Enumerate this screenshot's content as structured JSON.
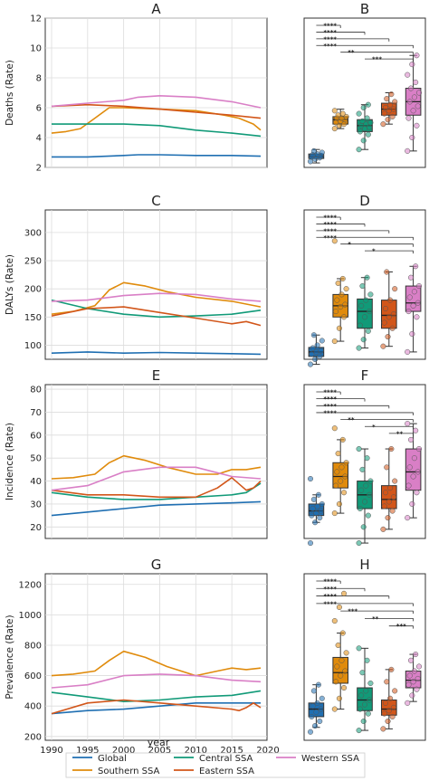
{
  "figure": {
    "xlabel": "year",
    "legend": [
      {
        "name": "Global",
        "color": "#1f6fb2"
      },
      {
        "name": "Southern SSA",
        "color": "#e08b0c"
      },
      {
        "name": "Central SSA",
        "color": "#119a78"
      },
      {
        "name": "Eastern SSA",
        "color": "#d2561a"
      },
      {
        "name": "Western SSA",
        "color": "#d97fc6"
      }
    ]
  },
  "chart_data": [
    {
      "panel": "A",
      "type": "line",
      "ylabel": "Deaths (Rate)",
      "xlim": [
        1990,
        2019
      ],
      "ylim": [
        2,
        12
      ],
      "yticks": [
        2,
        4,
        6,
        8,
        10,
        12
      ],
      "series": [
        {
          "name": "Global",
          "x": [
            1990,
            1995,
            2000,
            2002,
            2005,
            2010,
            2015,
            2019
          ],
          "y": [
            2.7,
            2.7,
            2.8,
            2.85,
            2.85,
            2.8,
            2.8,
            2.75
          ]
        },
        {
          "name": "Southern SSA",
          "x": [
            1990,
            1992,
            1994,
            1996,
            1998,
            2000,
            2005,
            2010,
            2014,
            2016,
            2018,
            2019
          ],
          "y": [
            4.3,
            4.4,
            4.6,
            5.3,
            6.0,
            6.0,
            5.9,
            5.8,
            5.5,
            5.3,
            4.9,
            4.5
          ]
        },
        {
          "name": "Central SSA",
          "x": [
            1990,
            1995,
            2000,
            2005,
            2010,
            2015,
            2019
          ],
          "y": [
            4.9,
            4.9,
            4.9,
            4.8,
            4.5,
            4.3,
            4.1
          ]
        },
        {
          "name": "Eastern SSA",
          "x": [
            1990,
            1995,
            2000,
            2005,
            2010,
            2015,
            2019
          ],
          "y": [
            6.1,
            6.2,
            6.1,
            5.9,
            5.7,
            5.5,
            5.3
          ]
        },
        {
          "name": "Western SSA",
          "x": [
            1990,
            1995,
            2000,
            2002,
            2005,
            2010,
            2015,
            2019
          ],
          "y": [
            6.1,
            6.3,
            6.5,
            6.7,
            6.8,
            6.7,
            6.4,
            6.0
          ]
        }
      ]
    },
    {
      "panel": "B",
      "type": "box",
      "ylim": [
        2,
        12
      ],
      "significance": [
        "****",
        "****",
        "****",
        "****",
        "**",
        "***"
      ],
      "boxes": [
        {
          "name": "Global",
          "whisker_low": 2.3,
          "q1": 2.6,
          "median": 2.75,
          "q3": 2.9,
          "whisker_high": 3.2,
          "points": [
            2.4,
            2.55,
            2.65,
            2.7,
            2.75,
            2.8,
            2.85,
            2.9,
            3.0,
            3.1
          ]
        },
        {
          "name": "Southern SSA",
          "whisker_low": 4.6,
          "q1": 4.9,
          "median": 5.2,
          "q3": 5.4,
          "whisker_high": 5.9,
          "points": [
            4.6,
            4.8,
            4.9,
            5.0,
            5.1,
            5.2,
            5.3,
            5.3,
            5.4,
            5.5,
            5.6,
            5.8
          ]
        },
        {
          "name": "Central SSA",
          "whisker_low": 3.2,
          "q1": 4.4,
          "median": 4.8,
          "q3": 5.2,
          "whisker_high": 6.2,
          "points": [
            3.2,
            3.8,
            4.2,
            4.4,
            4.6,
            4.7,
            4.8,
            4.9,
            5.0,
            5.1,
            5.3,
            5.6,
            6.0,
            6.2
          ]
        },
        {
          "name": "Eastern SSA",
          "whisker_low": 4.9,
          "q1": 5.5,
          "median": 5.9,
          "q3": 6.3,
          "whisker_high": 7.0,
          "points": [
            4.9,
            5.2,
            5.4,
            5.6,
            5.8,
            5.9,
            6.0,
            6.2,
            6.4,
            6.6,
            6.9
          ]
        },
        {
          "name": "Western SSA",
          "whisker_low": 3.1,
          "q1": 5.5,
          "median": 6.4,
          "q3": 7.3,
          "whisker_high": 9.5,
          "points": [
            3.1,
            4.0,
            4.8,
            5.3,
            5.8,
            6.1,
            6.4,
            6.7,
            7.0,
            7.3,
            7.7,
            8.2,
            8.9,
            9.5
          ]
        }
      ]
    },
    {
      "panel": "C",
      "type": "line",
      "ylabel": "DALYs (Rate)",
      "xlim": [
        1990,
        2019
      ],
      "ylim": [
        75,
        340
      ],
      "yticks": [
        100,
        150,
        200,
        250,
        300
      ],
      "series": [
        {
          "name": "Global",
          "x": [
            1990,
            1995,
            2000,
            2005,
            2010,
            2015,
            2019
          ],
          "y": [
            86,
            88,
            86,
            87,
            86,
            85,
            84
          ]
        },
        {
          "name": "Southern SSA",
          "x": [
            1990,
            1993,
            1996,
            1998,
            2000,
            2003,
            2006,
            2010,
            2015,
            2019
          ],
          "y": [
            155,
            160,
            170,
            198,
            211,
            205,
            195,
            185,
            178,
            168
          ]
        },
        {
          "name": "Central SSA",
          "x": [
            1990,
            1995,
            2000,
            2005,
            2010,
            2015,
            2019
          ],
          "y": [
            180,
            165,
            155,
            150,
            152,
            155,
            162
          ]
        },
        {
          "name": "Eastern SSA",
          "x": [
            1990,
            1995,
            2000,
            2005,
            2010,
            2015,
            2017,
            2019
          ],
          "y": [
            152,
            165,
            168,
            158,
            148,
            138,
            142,
            135
          ]
        },
        {
          "name": "Western SSA",
          "x": [
            1990,
            1995,
            2000,
            2005,
            2010,
            2015,
            2019
          ],
          "y": [
            178,
            180,
            188,
            192,
            190,
            182,
            178
          ]
        }
      ]
    },
    {
      "panel": "D",
      "type": "box",
      "ylim": [
        75,
        340
      ],
      "significance": [
        "****",
        "****",
        "****",
        "****",
        "*",
        "*"
      ],
      "boxes": [
        {
          "name": "Global",
          "whisker_low": 66,
          "q1": 80,
          "median": 88,
          "q3": 96,
          "whisker_high": 118,
          "points": [
            66,
            75,
            80,
            84,
            88,
            90,
            95,
            100,
            108,
            118
          ]
        },
        {
          "name": "Southern SSA",
          "whisker_low": 107,
          "q1": 150,
          "median": 170,
          "q3": 190,
          "whisker_high": 218,
          "points": [
            107,
            130,
            150,
            160,
            168,
            172,
            180,
            190,
            200,
            210,
            218,
            285
          ]
        },
        {
          "name": "Central SSA",
          "whisker_low": 95,
          "q1": 130,
          "median": 160,
          "q3": 182,
          "whisker_high": 220,
          "points": [
            95,
            110,
            125,
            135,
            150,
            160,
            170,
            180,
            190,
            205,
            220
          ]
        },
        {
          "name": "Eastern SSA",
          "whisker_low": 98,
          "q1": 130,
          "median": 153,
          "q3": 180,
          "whisker_high": 230,
          "points": [
            98,
            115,
            130,
            140,
            150,
            155,
            165,
            180,
            200,
            230
          ]
        },
        {
          "name": "Western SSA",
          "whisker_low": 88,
          "q1": 160,
          "median": 175,
          "q3": 205,
          "whisker_high": 240,
          "points": [
            88,
            120,
            150,
            160,
            170,
            175,
            185,
            195,
            205,
            220,
            240
          ]
        }
      ]
    },
    {
      "panel": "E",
      "type": "line",
      "ylabel": "Incidence (Rate)",
      "xlim": [
        1990,
        2019
      ],
      "ylim": [
        15,
        82
      ],
      "yticks": [
        20,
        30,
        40,
        50,
        60,
        70,
        80
      ],
      "series": [
        {
          "name": "Global",
          "x": [
            1990,
            1995,
            2000,
            2005,
            2010,
            2015,
            2019
          ],
          "y": [
            25,
            26.5,
            28,
            29.5,
            30,
            30.5,
            31
          ]
        },
        {
          "name": "Southern SSA",
          "x": [
            1990,
            1993,
            1996,
            1998,
            2000,
            2003,
            2006,
            2010,
            2013,
            2015,
            2017,
            2019
          ],
          "y": [
            41,
            41.5,
            43,
            48,
            51,
            49,
            46,
            43,
            43,
            45,
            45,
            46
          ]
        },
        {
          "name": "Central SSA",
          "x": [
            1990,
            1995,
            2000,
            2005,
            2010,
            2015,
            2017,
            2019
          ],
          "y": [
            35,
            33,
            32,
            32,
            33,
            34,
            35,
            39
          ]
        },
        {
          "name": "Eastern SSA",
          "x": [
            1990,
            1995,
            2000,
            2005,
            2010,
            2013,
            2015,
            2017,
            2018,
            2019
          ],
          "y": [
            36,
            34,
            34,
            33,
            33,
            37,
            41.5,
            36,
            37,
            40
          ]
        },
        {
          "name": "Western SSA",
          "x": [
            1990,
            1995,
            2000,
            2005,
            2010,
            2015,
            2019
          ],
          "y": [
            36,
            38,
            44,
            46,
            46,
            42,
            41
          ]
        }
      ]
    },
    {
      "panel": "F",
      "type": "box",
      "ylim": [
        15,
        82
      ],
      "significance": [
        "****",
        "****",
        "****",
        "****",
        "**",
        "*",
        "**"
      ],
      "boxes": [
        {
          "name": "Global",
          "whisker_low": 22,
          "q1": 25,
          "median": 27,
          "q3": 30,
          "whisker_high": 34,
          "points": [
            13,
            22,
            24,
            25,
            26,
            27,
            28,
            29,
            30,
            32,
            34,
            41
          ]
        },
        {
          "name": "Southern SSA",
          "whisker_low": 26,
          "q1": 37,
          "median": 42,
          "q3": 48,
          "whisker_high": 58,
          "points": [
            26,
            30,
            35,
            38,
            40,
            42,
            44,
            46,
            48,
            52,
            58,
            63
          ]
        },
        {
          "name": "Central SSA",
          "whisker_low": 13,
          "q1": 28,
          "median": 34,
          "q3": 40,
          "whisker_high": 54,
          "points": [
            13,
            20,
            25,
            28,
            31,
            34,
            36,
            38,
            40,
            45,
            50,
            54
          ]
        },
        {
          "name": "Eastern SSA",
          "whisker_low": 19,
          "q1": 28,
          "median": 32,
          "q3": 38,
          "whisker_high": 54,
          "points": [
            19,
            24,
            27,
            29,
            31,
            33,
            35,
            37,
            40,
            46,
            54
          ]
        },
        {
          "name": "Western SSA",
          "whisker_low": 24,
          "q1": 36,
          "median": 44,
          "q3": 54,
          "whisker_high": 65,
          "points": [
            24,
            30,
            35,
            38,
            42,
            44,
            46,
            50,
            54,
            58,
            62,
            65
          ]
        }
      ]
    },
    {
      "panel": "G",
      "type": "line",
      "ylabel": "Prevalence (Rate)",
      "xlim": [
        1990,
        2019
      ],
      "ylim": [
        175,
        1270
      ],
      "yticks": [
        200,
        400,
        600,
        800,
        1000,
        1200
      ],
      "series": [
        {
          "name": "Global",
          "x": [
            1990,
            1995,
            2000,
            2005,
            2010,
            2015,
            2019
          ],
          "y": [
            350,
            370,
            380,
            400,
            420,
            420,
            420
          ]
        },
        {
          "name": "Southern SSA",
          "x": [
            1990,
            1993,
            1996,
            1998,
            2000,
            2003,
            2006,
            2010,
            2013,
            2015,
            2017,
            2019
          ],
          "y": [
            600,
            610,
            630,
            700,
            760,
            720,
            660,
            600,
            630,
            650,
            640,
            650
          ]
        },
        {
          "name": "Central SSA",
          "x": [
            1990,
            1995,
            2000,
            2005,
            2010,
            2015,
            2019
          ],
          "y": [
            490,
            460,
            430,
            440,
            460,
            470,
            500
          ]
        },
        {
          "name": "Eastern SSA",
          "x": [
            1990,
            1995,
            2000,
            2005,
            2010,
            2015,
            2016,
            2017,
            2018,
            2019
          ],
          "y": [
            350,
            420,
            440,
            420,
            400,
            380,
            370,
            390,
            420,
            390
          ]
        },
        {
          "name": "Western SSA",
          "x": [
            1990,
            1995,
            2000,
            2005,
            2010,
            2015,
            2019
          ],
          "y": [
            520,
            540,
            600,
            610,
            600,
            570,
            560
          ]
        }
      ]
    },
    {
      "panel": "H",
      "type": "box",
      "ylim": [
        175,
        1270
      ],
      "significance": [
        "****",
        "****",
        "****",
        "****",
        "***",
        "**",
        "***"
      ],
      "boxes": [
        {
          "name": "Global",
          "whisker_low": 260,
          "q1": 330,
          "median": 380,
          "q3": 420,
          "whisker_high": 540,
          "points": [
            230,
            270,
            300,
            330,
            360,
            380,
            400,
            420,
            450,
            500,
            540
          ]
        },
        {
          "name": "Southern SSA",
          "whisker_low": 380,
          "q1": 550,
          "median": 620,
          "q3": 720,
          "whisker_high": 880,
          "points": [
            380,
            450,
            520,
            560,
            600,
            630,
            660,
            700,
            750,
            800,
            880,
            960,
            1050,
            1140
          ]
        },
        {
          "name": "Central SSA",
          "whisker_low": 240,
          "q1": 370,
          "median": 440,
          "q3": 520,
          "whisker_high": 780,
          "points": [
            240,
            300,
            350,
            380,
            410,
            440,
            470,
            500,
            550,
            620,
            700,
            780
          ]
        },
        {
          "name": "Eastern SSA",
          "whisker_low": 250,
          "q1": 340,
          "median": 380,
          "q3": 440,
          "whisker_high": 640,
          "points": [
            250,
            300,
            330,
            350,
            370,
            390,
            420,
            450,
            500,
            560,
            640
          ]
        },
        {
          "name": "Western SSA",
          "whisker_low": 430,
          "q1": 520,
          "median": 570,
          "q3": 630,
          "whisker_high": 740,
          "points": [
            420,
            470,
            510,
            540,
            560,
            580,
            600,
            630,
            660,
            700,
            740
          ]
        }
      ]
    }
  ]
}
